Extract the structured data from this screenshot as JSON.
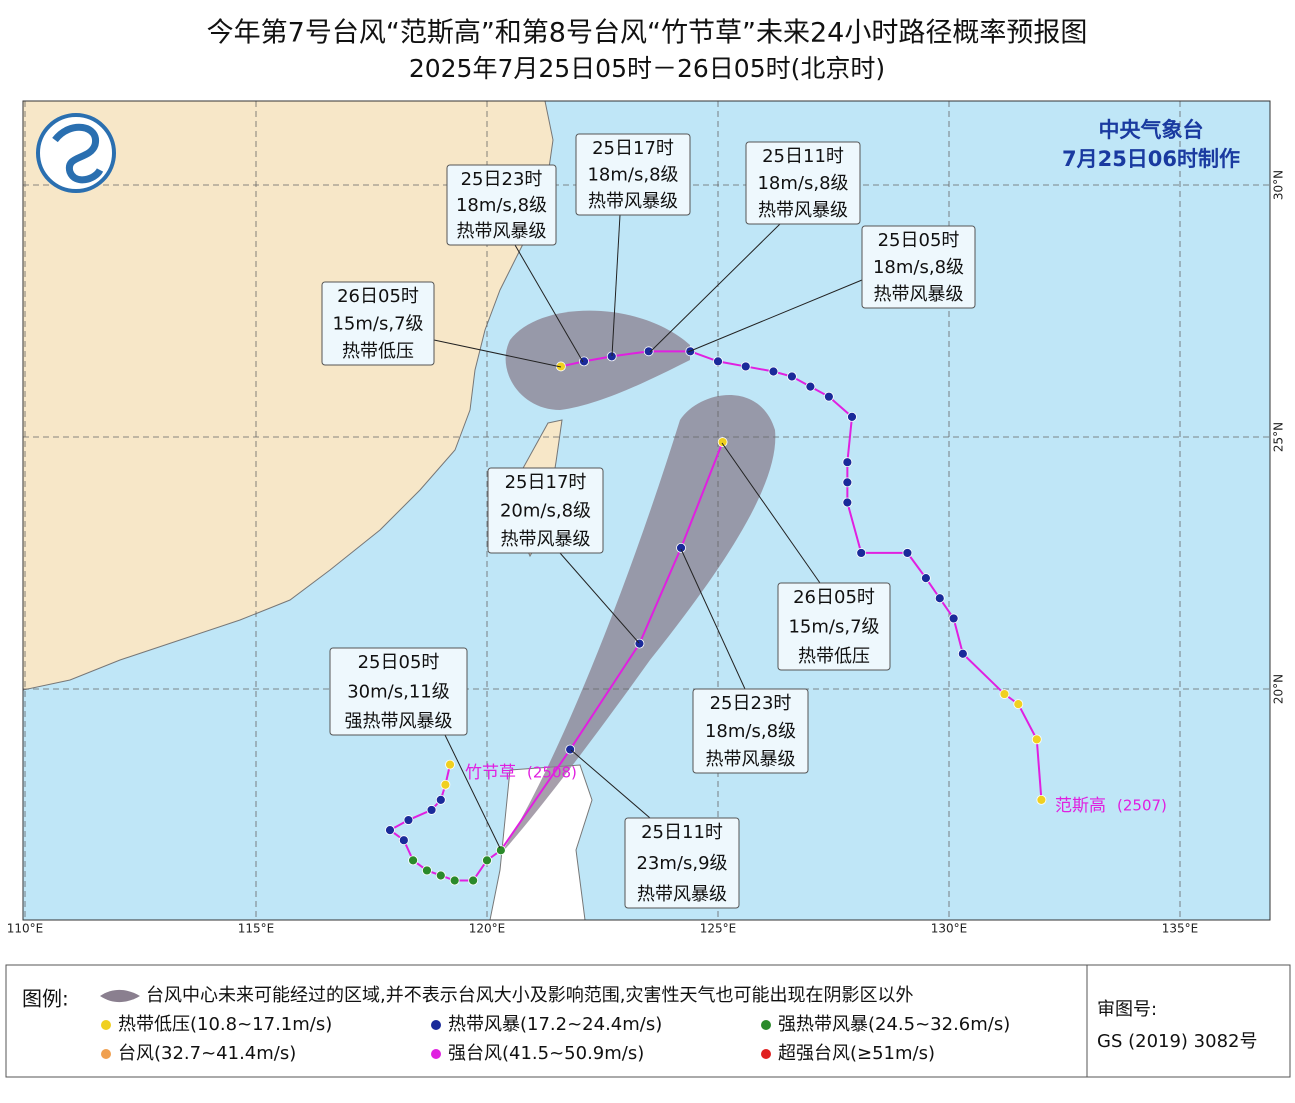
{
  "header": {
    "title": "今年第7号台风“范斯高”和第8号台风“竹节草”未来24小时路径概率预报图",
    "subtitle": "2025年7月25日05时－26日05时(北京时)"
  },
  "map": {
    "agency": "中央气象台",
    "issued": "7月25日06时制作",
    "lon_ticks": [
      {
        "value": 110,
        "label": "110°E"
      },
      {
        "value": 115,
        "label": "115°E"
      },
      {
        "value": 120,
        "label": "120°E"
      },
      {
        "value": 125,
        "label": "125°E"
      },
      {
        "value": 130,
        "label": "130°E"
      },
      {
        "value": 135,
        "label": "135°E"
      }
    ],
    "lat_ticks": [
      {
        "value": 20,
        "label": "20°N"
      },
      {
        "value": 25,
        "label": "25°N"
      },
      {
        "value": 30,
        "label": "30°N"
      }
    ],
    "storms": [
      {
        "name": "范斯高",
        "code": "(2507)",
        "color": "#e020e0",
        "past": {
          "lon": [
            132.0,
            131.9,
            131.5,
            131.2,
            130.3,
            130.1,
            129.8,
            129.5,
            129.1,
            128.1,
            127.8,
            127.8,
            127.8,
            127.9,
            127.4,
            127.0,
            126.6,
            126.2,
            125.6,
            125.0,
            124.4
          ],
          "lat": [
            17.8,
            19.0,
            19.7,
            19.9,
            20.7,
            21.4,
            21.8,
            22.2,
            22.7,
            22.7,
            23.7,
            24.1,
            24.5,
            25.4,
            25.8,
            26.0,
            26.2,
            26.3,
            26.4,
            26.5,
            26.7
          ],
          "colors": [
            "#f0d020",
            "#f0d020",
            "#f0d020",
            "#f0d020",
            "#1a2a9a",
            "#1a2a9a",
            "#1a2a9a",
            "#1a2a9a",
            "#1a2a9a",
            "#1a2a9a",
            "#1a2a9a",
            "#1a2a9a",
            "#1a2a9a",
            "#1a2a9a",
            "#1a2a9a",
            "#1a2a9a",
            "#1a2a9a",
            "#1a2a9a",
            "#1a2a9a",
            "#1a2a9a",
            "#1a2a9a"
          ]
        },
        "forecast": {
          "lon": [
            123.5,
            122.7,
            122.1,
            121.6
          ],
          "lat": [
            26.7,
            26.6,
            26.5,
            26.4
          ],
          "colors": [
            "#1a2a9a",
            "#1a2a9a",
            "#1a2a9a",
            "#f0d020"
          ]
        }
      },
      {
        "name": "竹节草",
        "code": "(2508)",
        "color": "#e020e0",
        "past": {
          "lon": [
            119.2,
            119.1,
            119.0,
            118.8,
            118.3,
            117.9,
            118.2,
            118.4,
            118.7,
            119.0,
            119.3,
            119.7,
            120.0,
            120.3
          ],
          "lat": [
            18.5,
            18.1,
            17.8,
            17.6,
            17.4,
            17.2,
            17.0,
            16.6,
            16.4,
            16.3,
            16.2,
            16.2,
            16.6,
            16.8
          ],
          "colors": [
            "#f0d020",
            "#f0d020",
            "#1a2a9a",
            "#1a2a9a",
            "#1a2a9a",
            "#1a2a9a",
            "#1a2a9a",
            "#2a8a2a",
            "#2a8a2a",
            "#2a8a2a",
            "#2a8a2a",
            "#2a8a2a",
            "#2a8a2a",
            "#2a8a2a"
          ]
        },
        "forecast": {
          "lon": [
            121.8,
            123.3,
            124.2,
            125.1
          ],
          "lat": [
            18.8,
            20.9,
            22.8,
            24.9
          ],
          "colors": [
            "#1a2a9a",
            "#1a2a9a",
            "#1a2a9a",
            "#f0d020"
          ]
        }
      }
    ],
    "callouts": [
      {
        "lines": [
          "26日05时",
          "15m/s,7级",
          "热带低压"
        ]
      },
      {
        "lines": [
          "25日23时",
          "18m/s,8级",
          "热带风暴级"
        ]
      },
      {
        "lines": [
          "25日17时",
          "18m/s,8级",
          "热带风暴级"
        ]
      },
      {
        "lines": [
          "25日11时",
          "18m/s,8级",
          "热带风暴级"
        ]
      },
      {
        "lines": [
          "25日05时",
          "18m/s,8级",
          "热带风暴级"
        ]
      },
      {
        "lines": [
          "25日17时",
          "20m/s,8级",
          "热带风暴级"
        ]
      },
      {
        "lines": [
          "26日05时",
          "15m/s,7级",
          "热带低压"
        ]
      },
      {
        "lines": [
          "25日23时",
          "18m/s,8级",
          "热带风暴级"
        ]
      },
      {
        "lines": [
          "25日11时",
          "23m/s,9级",
          "热带风暴级"
        ]
      },
      {
        "lines": [
          "25日05时",
          "30m/s,11级",
          "强热带风暴级"
        ]
      }
    ]
  },
  "legend": {
    "title": "图例:",
    "cone": "台风中心未来可能经过的区域,并不表示台风大小及影响范围,灾害性天气也可能出现在阴影区以外",
    "items": [
      {
        "label": "热带低压(10.8~17.1m/s)",
        "color": "#f0d020"
      },
      {
        "label": "热带风暴(17.2~24.4m/s)",
        "color": "#1a2a9a"
      },
      {
        "label": "强热带风暴(24.5~32.6m/s)",
        "color": "#2a8a2a"
      },
      {
        "label": "台风(32.7~41.4m/s)",
        "color": "#f0a050"
      },
      {
        "label": "强台风(41.5~50.9m/s)",
        "color": "#e020e0"
      },
      {
        "label": "超强台风(≥51m/s)",
        "color": "#e02020"
      }
    ]
  },
  "approval": {
    "label": "审图号:",
    "number": "GS (2019) 3082号"
  }
}
